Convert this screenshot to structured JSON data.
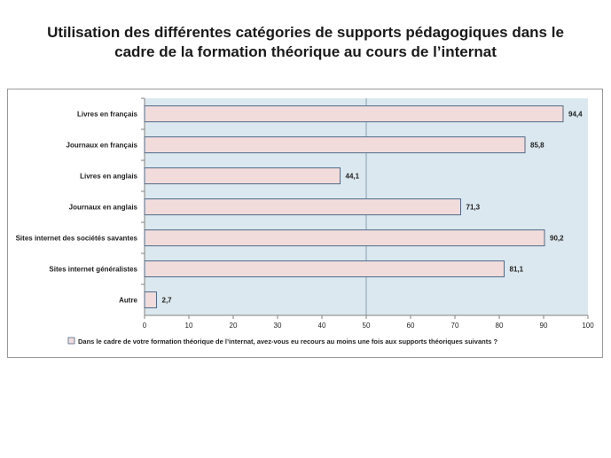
{
  "page": {
    "title_line1": "Utilisation des différentes catégories de supports pédagogiques dans le",
    "title_line2": "cadre de la formation théorique au cours de l’internat"
  },
  "chart_data": {
    "type": "bar",
    "orientation": "horizontal",
    "title": "Utilisation des différentes catégories de supports pédagogiques dans le cadre de la formation théorique au cours de l’internat",
    "categories": [
      "Livres en français",
      "Journaux en français",
      "Livres en anglais",
      "Journaux en anglais",
      "Sites internet des sociétés savantes",
      "Sites internet généralistes",
      "Autre"
    ],
    "values": [
      94.4,
      85.8,
      44.1,
      71.3,
      90.2,
      81.1,
      2.7
    ],
    "value_labels": [
      "94,4",
      "85,8",
      "44,1",
      "71,3",
      "90,2",
      "81,1",
      "2,7"
    ],
    "xlim": [
      0,
      100
    ],
    "xticks": [
      0,
      10,
      20,
      30,
      40,
      50,
      60,
      70,
      80,
      90,
      100
    ],
    "reference_line": 50,
    "legend": "Dans le cadre de votre formation théorique de l’internat, avez-vous eu recours au moins une fois aux supports théoriques suivants ?",
    "colors": {
      "bar_fill": "#f2dcdb",
      "bar_stroke": "#4f6b8a",
      "plot_bg": "#dbe8ef",
      "reference_line": "#8aa0b0",
      "axis": "#808080"
    }
  }
}
